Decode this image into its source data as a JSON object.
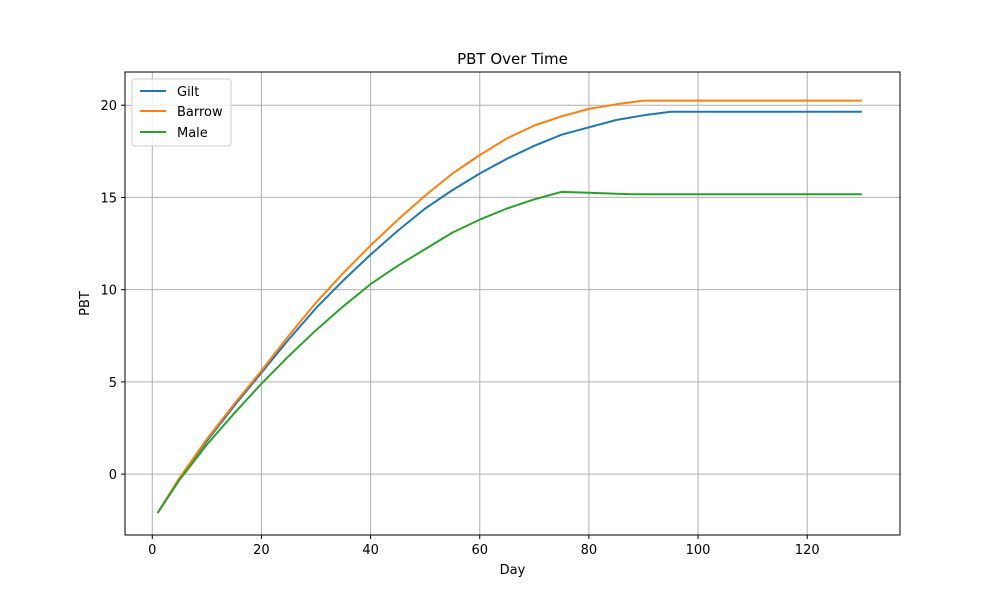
{
  "chart_data": {
    "type": "line",
    "title": "PBT Over Time",
    "xlabel": "Day",
    "ylabel": "PBT",
    "xlim": [
      -5,
      137
    ],
    "ylim": [
      -3.3,
      21.8
    ],
    "xticks": [
      0,
      20,
      40,
      60,
      80,
      100,
      120
    ],
    "yticks": [
      0,
      5,
      10,
      15,
      20
    ],
    "grid": true,
    "legend_position": "top-left",
    "series": [
      {
        "name": "Gilt",
        "color": "#1f77b4",
        "x": [
          1,
          5,
          10,
          15,
          20,
          25,
          30,
          35,
          40,
          45,
          50,
          55,
          60,
          65,
          70,
          75,
          80,
          85,
          90,
          95,
          100,
          105,
          110,
          115,
          120,
          125,
          130
        ],
        "y": [
          -2.1,
          -0.2,
          1.8,
          3.7,
          5.5,
          7.3,
          9.0,
          10.5,
          11.9,
          13.2,
          14.4,
          15.4,
          16.3,
          17.1,
          17.8,
          18.4,
          18.8,
          19.2,
          19.45,
          19.65,
          19.65,
          19.65,
          19.65,
          19.65,
          19.65,
          19.65,
          19.65
        ]
      },
      {
        "name": "Barrow",
        "color": "#ff7f0e",
        "x": [
          1,
          5,
          10,
          15,
          20,
          25,
          30,
          35,
          40,
          45,
          50,
          55,
          60,
          65,
          70,
          75,
          80,
          85,
          90,
          95,
          100,
          105,
          110,
          115,
          120,
          125,
          130
        ],
        "y": [
          -2.1,
          -0.2,
          1.9,
          3.8,
          5.6,
          7.5,
          9.3,
          10.9,
          12.4,
          13.8,
          15.1,
          16.3,
          17.3,
          18.2,
          18.9,
          19.4,
          19.8,
          20.05,
          20.25,
          20.25,
          20.25,
          20.25,
          20.25,
          20.25,
          20.25,
          20.25,
          20.25
        ]
      },
      {
        "name": "Male",
        "color": "#2ca02c",
        "x": [
          1,
          5,
          10,
          15,
          20,
          25,
          30,
          35,
          40,
          45,
          50,
          55,
          60,
          65,
          70,
          75,
          80,
          85,
          88,
          90,
          95,
          100,
          105,
          110,
          115,
          120,
          125,
          130
        ],
        "y": [
          -2.1,
          -0.3,
          1.6,
          3.3,
          4.9,
          6.4,
          7.8,
          9.1,
          10.3,
          11.3,
          12.2,
          13.1,
          13.8,
          14.4,
          14.9,
          15.3,
          15.25,
          15.2,
          15.17,
          15.17,
          15.17,
          15.17,
          15.17,
          15.17,
          15.17,
          15.17,
          15.17,
          15.17
        ]
      }
    ]
  }
}
